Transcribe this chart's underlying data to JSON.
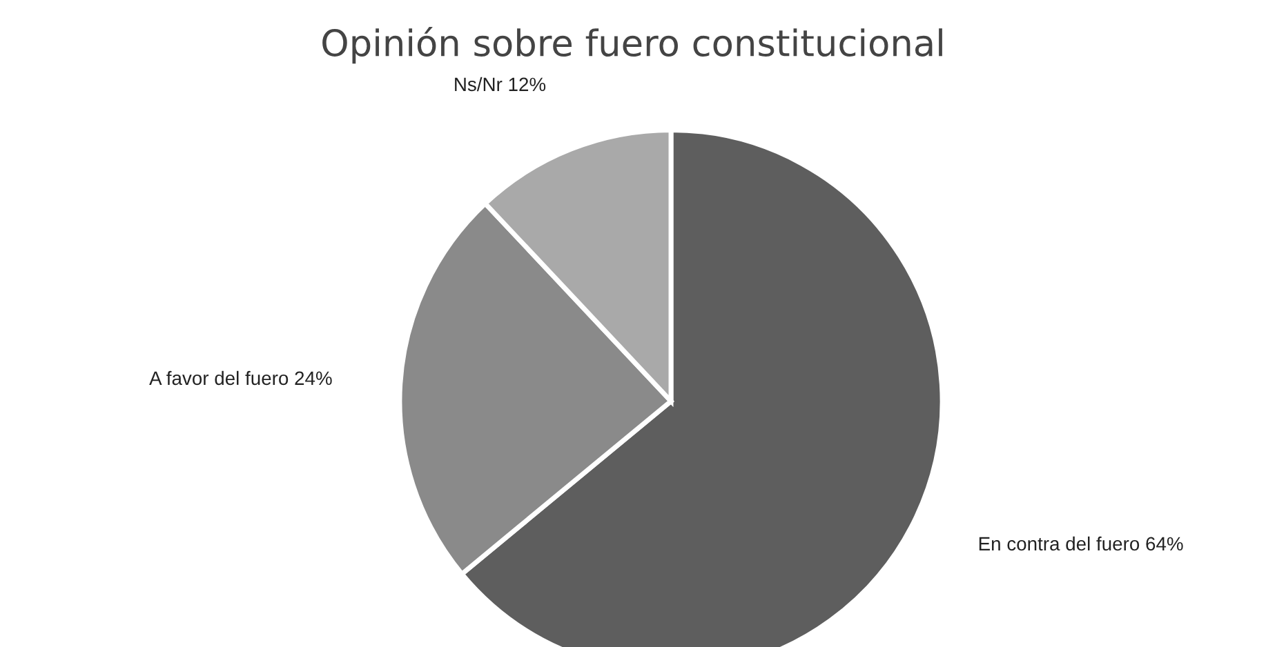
{
  "chart_data": {
    "type": "pie",
    "title": "Opinión sobre fuero constitucional",
    "categories": [
      "En contra del fuero",
      "A favor del fuero",
      "Ns/Nr"
    ],
    "values": [
      64,
      24,
      12
    ],
    "value_labels": [
      "64%",
      "24%",
      "12%"
    ],
    "colors": [
      "#5e5e5e",
      "#8a8a8a",
      "#a9a9a9"
    ],
    "legend": false
  }
}
